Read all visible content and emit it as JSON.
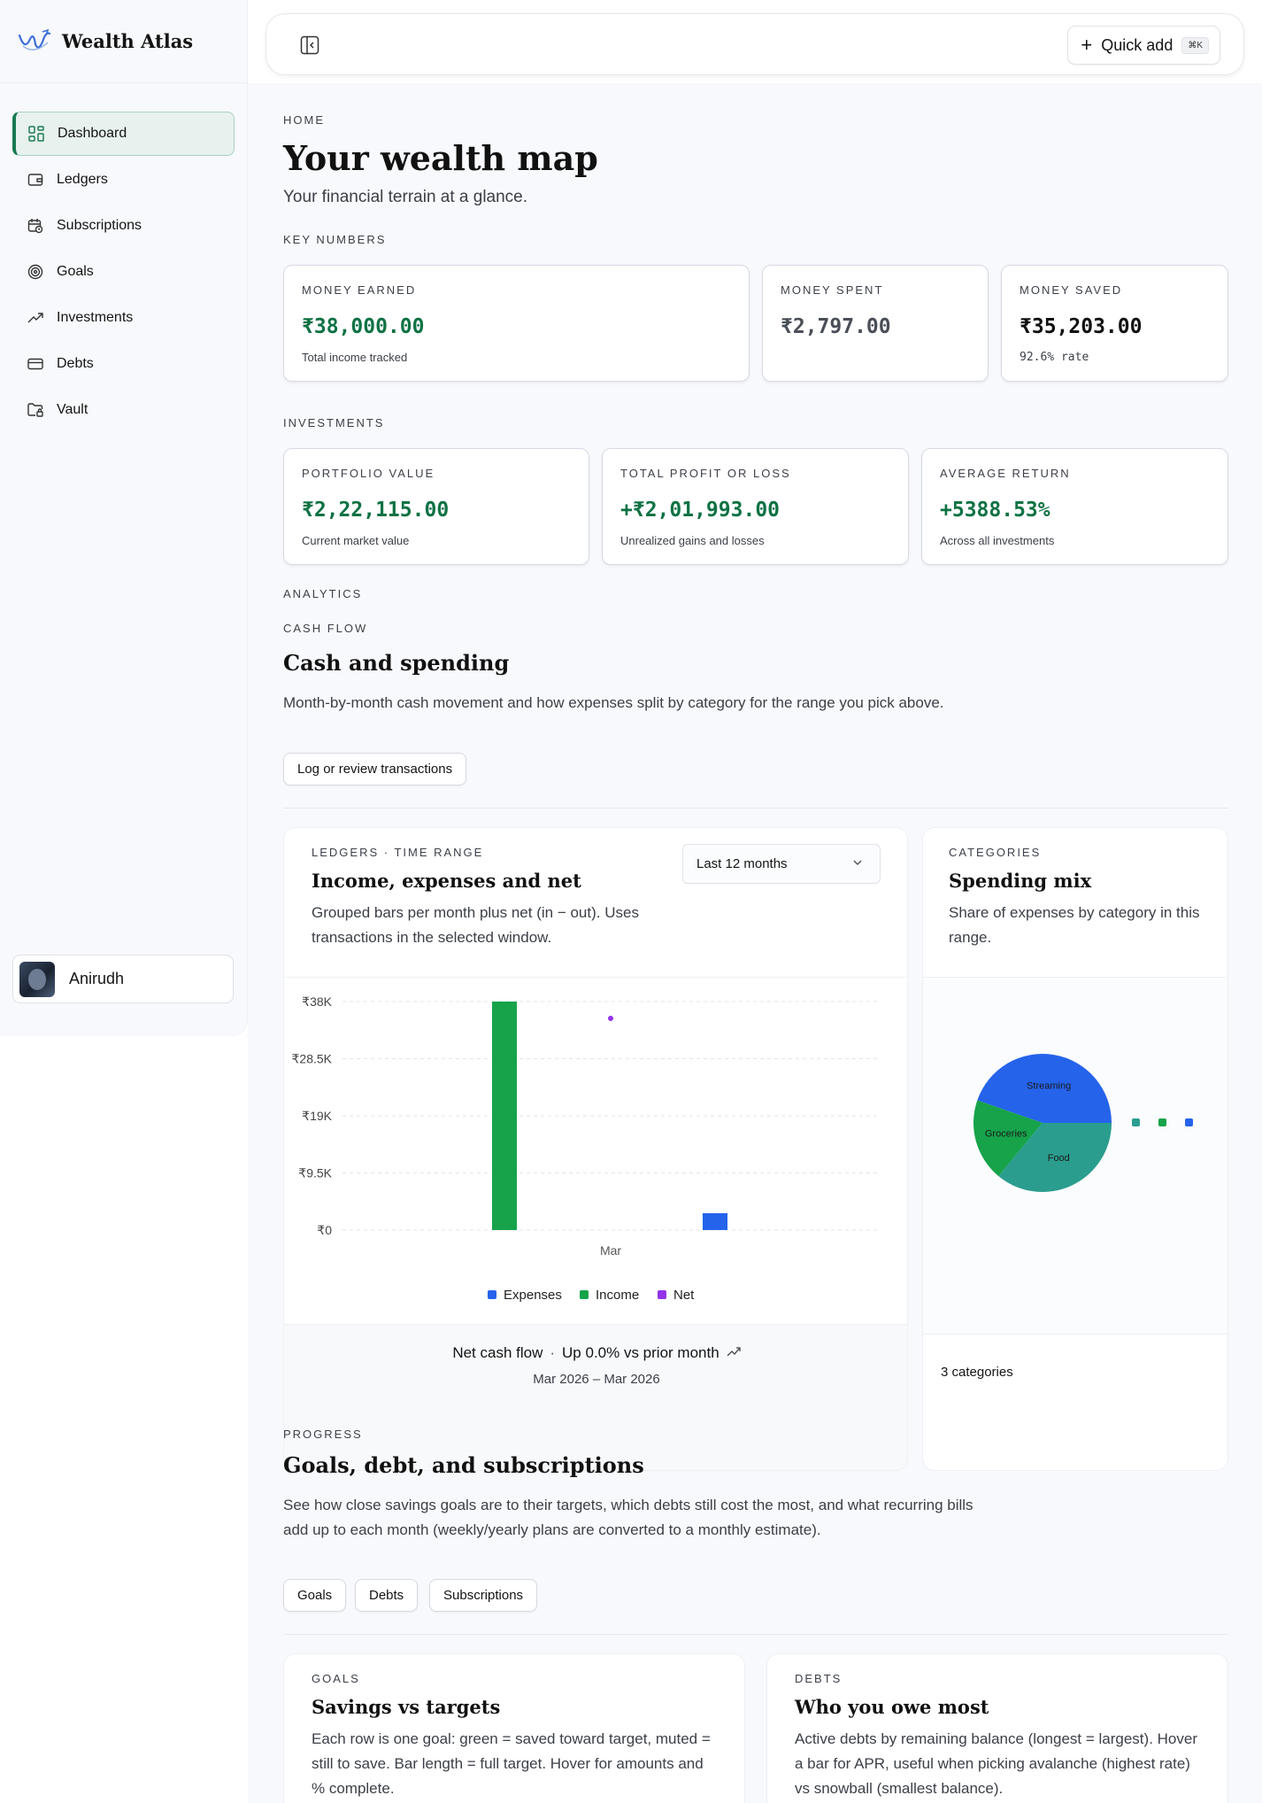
{
  "app": {
    "name": "Wealth Atlas"
  },
  "sidebar": {
    "items": [
      {
        "label": "Dashboard",
        "icon": "dashboard-grid-icon",
        "active": true
      },
      {
        "label": "Ledgers",
        "icon": "wallet-icon"
      },
      {
        "label": "Subscriptions",
        "icon": "calendar-clock-icon"
      },
      {
        "label": "Goals",
        "icon": "target-icon"
      },
      {
        "label": "Investments",
        "icon": "trending-up-icon"
      },
      {
        "label": "Debts",
        "icon": "credit-card-icon"
      },
      {
        "label": "Vault",
        "icon": "folder-lock-icon"
      }
    ],
    "user": {
      "name": "Anirudh"
    }
  },
  "topbar": {
    "quick_add_label": "Quick add",
    "quick_add_shortcut": "⌘K"
  },
  "header": {
    "eyebrow": "HOME",
    "title": "Your wealth map",
    "subtitle": "Your financial terrain at a glance."
  },
  "key_numbers": {
    "section_label": "KEY NUMBERS",
    "cards": [
      {
        "label": "MONEY EARNED",
        "value": "₹38,000.00",
        "note": "Total income tracked"
      },
      {
        "label": "MONEY SPENT",
        "value": "₹2,797.00",
        "note": ""
      },
      {
        "label": "MONEY SAVED",
        "value": "₹35,203.00",
        "note": "92.6% rate"
      }
    ]
  },
  "investments": {
    "section_label": "INVESTMENTS",
    "cards": [
      {
        "label": "PORTFOLIO VALUE",
        "value": "₹2,22,115.00",
        "note": "Current market value"
      },
      {
        "label": "TOTAL PROFIT OR LOSS",
        "value": "+₹2,01,993.00",
        "note": "Unrealized gains and losses"
      },
      {
        "label": "AVERAGE RETURN",
        "value": "+5388.53%",
        "note": "Across all investments"
      }
    ]
  },
  "analytics": {
    "section_label": "ANALYTICS",
    "eyebrow": "CASH FLOW",
    "title": "Cash and spending",
    "description": "Month-by-month cash movement and how expenses split by category for the range you pick above.",
    "button_label": "Log or review transactions"
  },
  "income_chart_panel": {
    "eyebrow": "LEDGERS · TIME RANGE",
    "title": "Income, expenses and net",
    "description": "Grouped bars per month plus net (in − out). Uses transactions in the selected window.",
    "range_selected": "Last 12 months",
    "footer_title": "Net cash flow",
    "footer_trend": "Up 0.0% vs prior month",
    "footer_range": "Mar 2026 – Mar 2026"
  },
  "spending_panel": {
    "eyebrow": "CATEGORIES",
    "title": "Spending mix",
    "description": "Share of expenses by category in this range.",
    "footer": "3 categories"
  },
  "progress": {
    "eyebrow": "PROGRESS",
    "title": "Goals, debt, and subscriptions",
    "description": "See how close savings goals are to their targets, which debts still cost the most, and what recurring bills add up to each month (weekly/yearly plans are converted to a monthly estimate).",
    "tabs": [
      "Goals",
      "Debts",
      "Subscriptions"
    ]
  },
  "goals_panel": {
    "eyebrow": "GOALS",
    "title": "Savings vs targets",
    "description": "Each row is one goal: green = saved toward target, muted = still to save. Bar length = full target. Hover for amounts and % complete."
  },
  "debts_panel": {
    "eyebrow": "DEBTS",
    "title": "Who you owe most",
    "description": "Active debts by remaining balance (longest = largest). Hover a bar for APR, useful when picking avalanche (highest rate) vs snowball (smallest balance)."
  },
  "colors": {
    "accent": "#197a52",
    "expenses": "#2563eb",
    "income": "#16a34a",
    "net": "#9333ea",
    "food": "#2a9d8f"
  },
  "chart_data": [
    {
      "type": "bar",
      "categories": [
        "Mar"
      ],
      "series": [
        {
          "name": "Expenses",
          "values": [
            2797
          ]
        },
        {
          "name": "Income",
          "values": [
            38000
          ]
        },
        {
          "name": "Net",
          "values": [
            35203
          ]
        }
      ],
      "y_ticks": [
        "₹38K",
        "₹28.5K",
        "₹19K",
        "₹9.5K",
        "₹0"
      ],
      "ylim": [
        0,
        38000
      ],
      "legend": "bottom",
      "grid": true
    },
    {
      "type": "pie",
      "labels": [
        "Streaming",
        "Groceries",
        "Food"
      ],
      "values": [
        1250,
        540,
        1007
      ]
    }
  ]
}
